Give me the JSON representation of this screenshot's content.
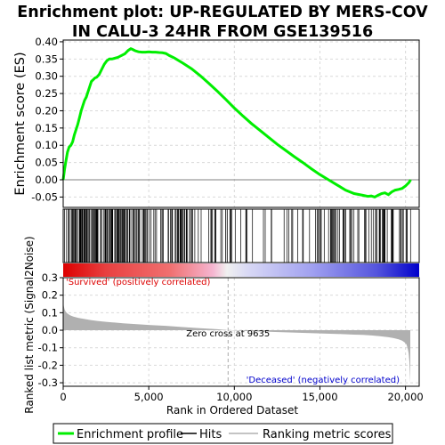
{
  "title_line1": "Enrichment plot: UP-REGULATED BY MERS-COV",
  "title_line2": "IN CALU-3 24HR FROM GSE139516",
  "colors": {
    "profile": "#00ee00",
    "hits": "#000000",
    "metric": "#b0b0b0",
    "positive": "#dd0000",
    "negative": "#0000cc",
    "zero_line": "#aaaaaa"
  },
  "chart_data": [
    {
      "type": "line",
      "name": "enrichment-profile",
      "ylabel": "Enrichment score (ES)",
      "xlim": [
        0,
        20800
      ],
      "ylim": [
        -0.08,
        0.405
      ],
      "yticks": [
        "-0.05",
        "0.00",
        "0.05",
        "0.10",
        "0.15",
        "0.20",
        "0.25",
        "0.30",
        "0.35",
        "0.40"
      ],
      "ytick_values": [
        -0.05,
        0.0,
        0.05,
        0.1,
        0.15,
        0.2,
        0.25,
        0.3,
        0.35,
        0.4
      ],
      "grid": true,
      "x": [
        0,
        80,
        160,
        250,
        350,
        450,
        550,
        650,
        750,
        850,
        950,
        1050,
        1150,
        1250,
        1350,
        1450,
        1550,
        1650,
        1750,
        1850,
        1950,
        2100,
        2250,
        2400,
        2550,
        2700,
        2850,
        3000,
        3200,
        3400,
        3600,
        3800,
        3950,
        4050,
        4200,
        4400,
        4600,
        4800,
        5000,
        5200,
        5400,
        5600,
        5800,
        6000,
        6200,
        6500,
        7000,
        7500,
        8000,
        8500,
        9000,
        9500,
        10000,
        10500,
        11000,
        11500,
        12000,
        12500,
        13000,
        13500,
        14000,
        14500,
        15000,
        15500,
        16000,
        16500,
        17000,
        17500,
        17800,
        18000,
        18200,
        18400,
        18600,
        18800,
        19000,
        19200,
        19400,
        19600,
        19800,
        20000,
        20200,
        20300
      ],
      "y": [
        0.0,
        0.03,
        0.055,
        0.08,
        0.095,
        0.1,
        0.11,
        0.13,
        0.145,
        0.16,
        0.18,
        0.2,
        0.215,
        0.23,
        0.24,
        0.255,
        0.27,
        0.285,
        0.29,
        0.295,
        0.297,
        0.305,
        0.32,
        0.335,
        0.345,
        0.35,
        0.35,
        0.352,
        0.355,
        0.36,
        0.365,
        0.375,
        0.38,
        0.378,
        0.374,
        0.371,
        0.37,
        0.37,
        0.371,
        0.37,
        0.37,
        0.369,
        0.368,
        0.366,
        0.36,
        0.353,
        0.338,
        0.322,
        0.302,
        0.28,
        0.257,
        0.233,
        0.208,
        0.185,
        0.163,
        0.143,
        0.123,
        0.103,
        0.085,
        0.067,
        0.05,
        0.032,
        0.015,
        0.0,
        -0.015,
        -0.03,
        -0.04,
        -0.045,
        -0.048,
        -0.047,
        -0.05,
        -0.045,
        -0.04,
        -0.038,
        -0.043,
        -0.035,
        -0.03,
        -0.028,
        -0.025,
        -0.018,
        -0.008,
        0.0
      ]
    },
    {
      "type": "bar",
      "name": "ranked-list-metric",
      "ylabel": "Ranked list metric (Signal2Noise)",
      "xlabel": "Rank in Ordered Dataset",
      "xlim": [
        0,
        20800
      ],
      "ylim": [
        -0.32,
        0.3
      ],
      "xticks": [
        "0",
        "5,000",
        "10,000",
        "15,000",
        "20,000"
      ],
      "xtick_values": [
        0,
        5000,
        10000,
        15000,
        20000
      ],
      "yticks": [
        "-0.3",
        "-0.2",
        "-0.1",
        "0.0",
        "0.1",
        "0.2",
        "0.3"
      ],
      "ytick_values": [
        -0.3,
        -0.2,
        -0.1,
        0.0,
        0.1,
        0.2,
        0.3
      ],
      "grid": true,
      "x": [
        0,
        30,
        80,
        150,
        250,
        400,
        600,
        900,
        1200,
        1600,
        2000,
        2500,
        3000,
        3500,
        4000,
        5000,
        6000,
        7000,
        8000,
        9000,
        9635,
        10000,
        11000,
        12000,
        13000,
        14000,
        15000,
        16000,
        17000,
        17500,
        18000,
        18500,
        19000,
        19300,
        19600,
        19800,
        19950,
        20050,
        20120,
        20180,
        20230,
        20280
      ],
      "y": [
        0.18,
        0.14,
        0.12,
        0.105,
        0.095,
        0.085,
        0.078,
        0.07,
        0.065,
        0.058,
        0.053,
        0.048,
        0.044,
        0.04,
        0.036,
        0.03,
        0.025,
        0.018,
        0.012,
        0.006,
        0.0,
        -0.002,
        -0.006,
        -0.009,
        -0.012,
        -0.015,
        -0.018,
        -0.021,
        -0.025,
        -0.027,
        -0.03,
        -0.034,
        -0.04,
        -0.045,
        -0.052,
        -0.06,
        -0.07,
        -0.08,
        -0.1,
        -0.13,
        -0.18,
        -0.3
      ]
    }
  ],
  "zero_cross_label": "Zero cross at 9635",
  "zero_cross_rank": 9635,
  "positive_label": "'Survived' (positively correlated)",
  "negative_label": "'Deceased' (negatively correlated)",
  "legend": {
    "profile": "Enrichment profile",
    "hits": "Hits",
    "metric": "Ranking metric scores"
  }
}
